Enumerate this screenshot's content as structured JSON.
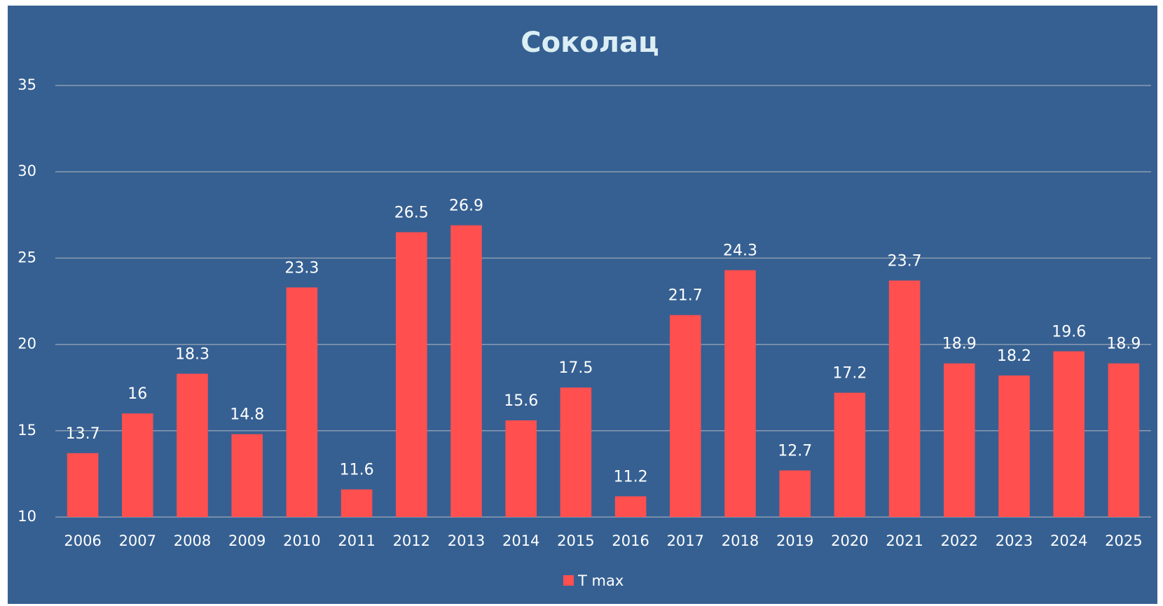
{
  "chart_data": {
    "type": "bar",
    "title": "Соколац",
    "categories": [
      "2006",
      "2007",
      "2008",
      "2009",
      "2010",
      "2011",
      "2012",
      "2013",
      "2014",
      "2015",
      "2016",
      "2017",
      "2018",
      "2019",
      "2020",
      "2021",
      "2022",
      "2023",
      "2024",
      "2025"
    ],
    "series": [
      {
        "name": "T max",
        "color": "#ff4f4f",
        "values": [
          13.7,
          16,
          18.3,
          14.8,
          23.3,
          11.6,
          26.5,
          26.9,
          15.6,
          17.5,
          11.2,
          21.7,
          24.3,
          12.7,
          17.2,
          23.7,
          18.9,
          18.2,
          19.6,
          18.9
        ]
      }
    ],
    "ylim": [
      10,
      35
    ],
    "yticks": [
      10,
      15,
      20,
      25,
      30,
      35
    ],
    "grid": true,
    "legend": "bottom"
  }
}
